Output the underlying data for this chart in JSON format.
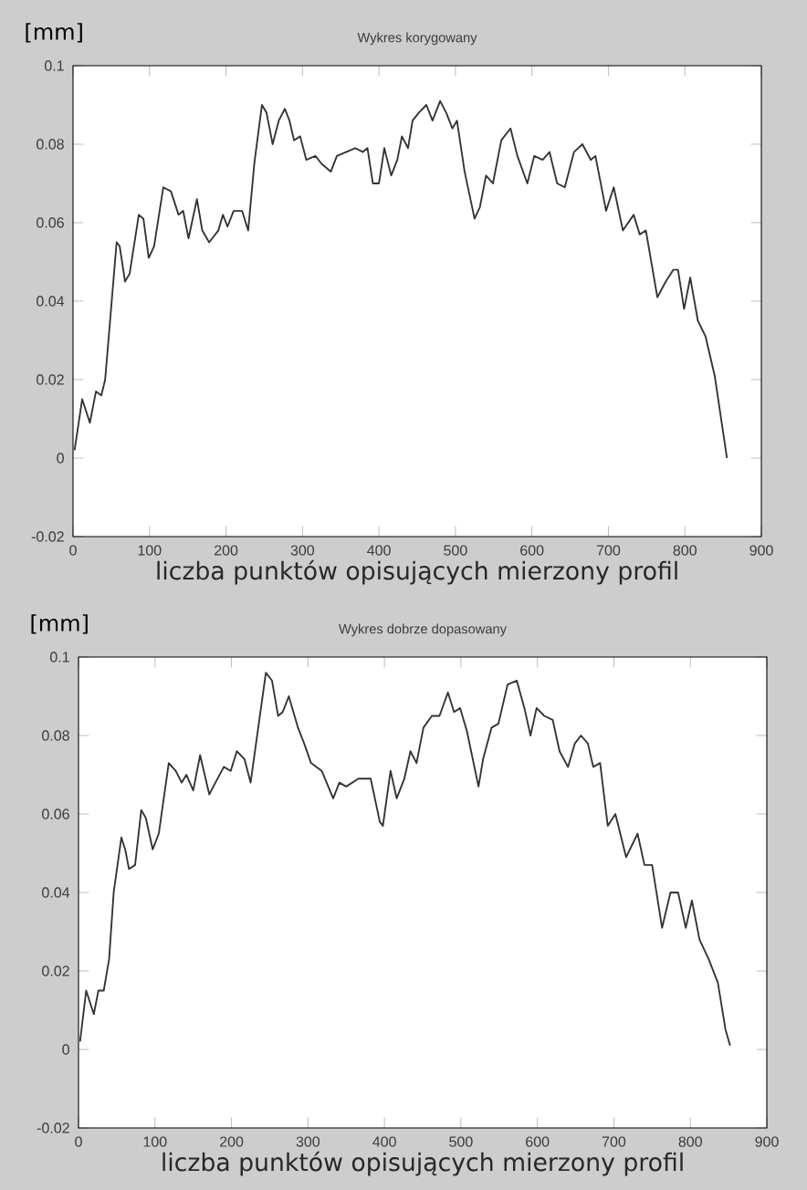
{
  "chart_data": [
    {
      "type": "line",
      "title": "Wykres korygowany",
      "ylabel": "[mm]",
      "xlabel": "liczba punktów opisujących mierzony profil",
      "xlim": [
        0,
        900
      ],
      "ylim": [
        -0.02,
        0.1
      ],
      "xticks": [
        0,
        100,
        200,
        300,
        400,
        500,
        600,
        700,
        800,
        900
      ],
      "yticks": [
        -0.02,
        0,
        0.02,
        0.04,
        0.06,
        0.08,
        0.1
      ],
      "series": [
        {
          "color": "#333333",
          "x": [
            2,
            12,
            22,
            30,
            37,
            42,
            57,
            61,
            68,
            74,
            86,
            92,
            99,
            106,
            118,
            128,
            138,
            144,
            151,
            162,
            169,
            178,
            190,
            196,
            202,
            210,
            221,
            229,
            237,
            247,
            253,
            261,
            269,
            277,
            283,
            289,
            297,
            305,
            317,
            325,
            337,
            345,
            357,
            369,
            379,
            385,
            392,
            400,
            407,
            416,
            424,
            430,
            438,
            444,
            452,
            462,
            470,
            480,
            488,
            496,
            502,
            512,
            525,
            532,
            540,
            549,
            560,
            572,
            581,
            594,
            603,
            614,
            623,
            633,
            643,
            655,
            666,
            677,
            683,
            697,
            707,
            719,
            733,
            741,
            749,
            764,
            775,
            785,
            791,
            799,
            807,
            817,
            827,
            839,
            855
          ],
          "values": [
            0.002,
            0.015,
            0.009,
            0.017,
            0.016,
            0.02,
            0.055,
            0.054,
            0.045,
            0.047,
            0.062,
            0.061,
            0.051,
            0.054,
            0.069,
            0.068,
            0.062,
            0.063,
            0.056,
            0.066,
            0.058,
            0.055,
            0.058,
            0.062,
            0.059,
            0.063,
            0.063,
            0.058,
            0.075,
            0.09,
            0.088,
            0.08,
            0.086,
            0.089,
            0.086,
            0.081,
            0.082,
            0.076,
            0.077,
            0.075,
            0.073,
            0.077,
            0.078,
            0.079,
            0.078,
            0.079,
            0.07,
            0.07,
            0.079,
            0.072,
            0.076,
            0.082,
            0.079,
            0.086,
            0.088,
            0.09,
            0.086,
            0.091,
            0.088,
            0.084,
            0.086,
            0.073,
            0.061,
            0.064,
            0.072,
            0.07,
            0.081,
            0.084,
            0.077,
            0.07,
            0.077,
            0.076,
            0.078,
            0.07,
            0.069,
            0.078,
            0.08,
            0.076,
            0.077,
            0.063,
            0.069,
            0.058,
            0.062,
            0.057,
            0.058,
            0.041,
            0.045,
            0.048,
            0.048,
            0.038,
            0.046,
            0.035,
            0.031,
            0.021,
            0.0
          ]
        }
      ]
    },
    {
      "type": "line",
      "title": "Wykres dobrze dopasowany",
      "ylabel": "[mm]",
      "xlabel": "liczba punktów opisujących mierzony profil",
      "xlim": [
        0,
        900
      ],
      "ylim": [
        -0.02,
        0.1
      ],
      "xticks": [
        0,
        100,
        200,
        300,
        400,
        500,
        600,
        700,
        800,
        900
      ],
      "yticks": [
        -0.02,
        0,
        0.02,
        0.04,
        0.06,
        0.08,
        0.1
      ],
      "series": [
        {
          "color": "#333333",
          "x": [
            2,
            10,
            20,
            26,
            33,
            40,
            46,
            56,
            61,
            66,
            74,
            82,
            88,
            97,
            105,
            118,
            127,
            135,
            141,
            150,
            159,
            171,
            179,
            190,
            199,
            207,
            217,
            225,
            235,
            245,
            253,
            261,
            267,
            275,
            287,
            295,
            304,
            318,
            333,
            341,
            350,
            366,
            382,
            394,
            398,
            408,
            416,
            426,
            434,
            442,
            451,
            462,
            472,
            483,
            491,
            499,
            508,
            523,
            529,
            540,
            549,
            561,
            573,
            583,
            591,
            599,
            609,
            620,
            629,
            640,
            649,
            657,
            666,
            673,
            682,
            692,
            702,
            716,
            731,
            740,
            750,
            763,
            774,
            784,
            794,
            802,
            812,
            824,
            836,
            846,
            852
          ],
          "values": [
            0.002,
            0.015,
            0.009,
            0.015,
            0.015,
            0.023,
            0.04,
            0.054,
            0.051,
            0.046,
            0.047,
            0.061,
            0.059,
            0.051,
            0.055,
            0.073,
            0.071,
            0.068,
            0.07,
            0.066,
            0.075,
            0.065,
            0.068,
            0.072,
            0.071,
            0.076,
            0.074,
            0.068,
            0.082,
            0.096,
            0.094,
            0.085,
            0.086,
            0.09,
            0.082,
            0.078,
            0.073,
            0.071,
            0.064,
            0.068,
            0.067,
            0.069,
            0.069,
            0.058,
            0.057,
            0.071,
            0.064,
            0.069,
            0.076,
            0.073,
            0.082,
            0.085,
            0.085,
            0.091,
            0.086,
            0.087,
            0.081,
            0.067,
            0.074,
            0.082,
            0.083,
            0.093,
            0.094,
            0.087,
            0.08,
            0.087,
            0.085,
            0.084,
            0.076,
            0.072,
            0.078,
            0.08,
            0.078,
            0.072,
            0.073,
            0.057,
            0.06,
            0.049,
            0.055,
            0.047,
            0.047,
            0.031,
            0.04,
            0.04,
            0.031,
            0.038,
            0.028,
            0.023,
            0.017,
            0.005,
            0.001
          ]
        }
      ]
    }
  ]
}
